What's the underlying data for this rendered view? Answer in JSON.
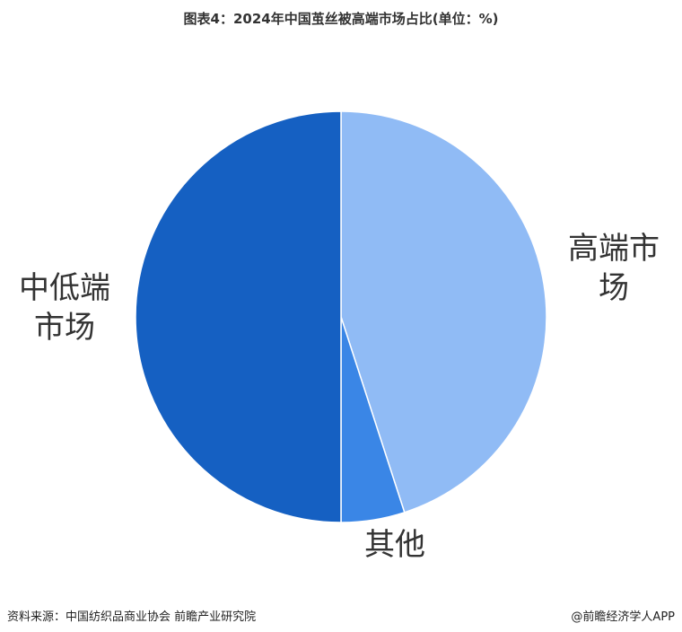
{
  "chart_data": {
    "type": "pie",
    "title": "图表4：2024年中国茧丝被高端市场占比(单位：%)",
    "slices": [
      {
        "label": "高端市场",
        "value": 45,
        "color": "#90bbf5",
        "label_lines": [
          "高端市",
          "场"
        ]
      },
      {
        "label": "其他",
        "value": 5,
        "color": "#3a86e6",
        "label_lines": [
          "其他"
        ]
      },
      {
        "label": "中低端市场",
        "value": 50,
        "color": "#1560c2",
        "label_lines": [
          "中低端",
          "市场"
        ]
      }
    ]
  },
  "footer": {
    "source": "资料来源：中国纺织品商业协会 前瞻产业研究院",
    "brand": "@前瞻经济学人APP"
  },
  "colors": {
    "label_text": "#333333"
  }
}
